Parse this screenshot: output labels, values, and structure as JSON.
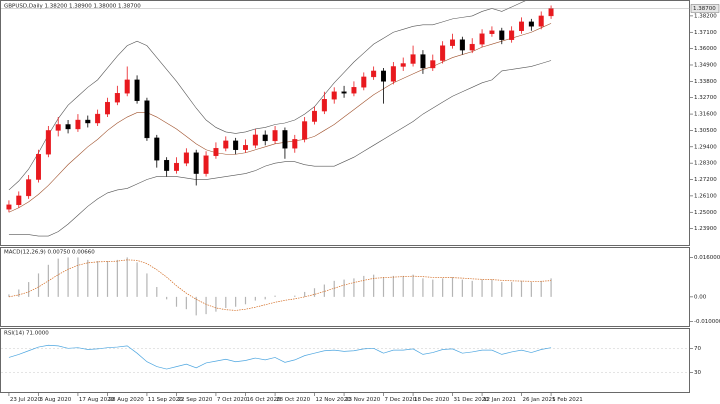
{
  "chart_data": [
    {
      "type": "candlestick",
      "title": "GBPUSD,Daily 1.38200 1.38900 1.38000 1.38700",
      "categories": [
        "23 Jul 2020",
        null,
        null,
        "3 Aug 2020",
        null,
        null,
        null,
        "17 Aug 2020",
        null,
        null,
        "28 Aug 2020",
        null,
        null,
        null,
        "11 Sep 2020",
        null,
        null,
        "22 Sep 2020",
        null,
        null,
        null,
        "7 Oct 2020",
        null,
        null,
        "16 Oct 2020",
        null,
        null,
        "28 Oct 2020",
        null,
        null,
        null,
        "12 Nov 2020",
        null,
        null,
        "23 Nov 2020",
        null,
        null,
        null,
        "7 Dec 2020",
        null,
        null,
        "18 Dec 2020",
        null,
        null,
        null,
        "31 Dec 2020",
        null,
        null,
        "12 Jan 2021",
        null,
        null,
        null,
        "26 Jan 2021",
        null,
        null,
        "5 Feb 2021"
      ],
      "open": [
        1.252,
        1.255,
        1.261,
        1.272,
        1.289,
        1.305,
        1.309,
        1.306,
        1.312,
        1.31,
        1.316,
        1.324,
        1.33,
        1.339,
        1.325,
        1.3,
        1.285,
        1.278,
        1.283,
        1.29,
        1.276,
        1.288,
        1.293,
        1.298,
        1.292,
        1.295,
        1.302,
        1.298,
        1.305,
        1.293,
        1.299,
        1.311,
        1.318,
        1.326,
        1.331,
        1.33,
        1.334,
        1.341,
        1.345,
        1.338,
        1.348,
        1.35,
        1.356,
        1.347,
        1.352,
        1.362,
        1.366,
        1.359,
        1.363,
        1.37,
        1.372,
        1.366,
        1.372,
        1.378,
        1.375,
        1.382
      ],
      "high": [
        1.258,
        1.264,
        1.275,
        1.292,
        1.308,
        1.314,
        1.312,
        1.316,
        1.315,
        1.319,
        1.327,
        1.335,
        1.348,
        1.342,
        1.327,
        1.302,
        1.287,
        1.287,
        1.293,
        1.292,
        1.291,
        1.297,
        1.301,
        1.3,
        1.299,
        1.306,
        1.305,
        1.308,
        1.307,
        1.302,
        1.314,
        1.321,
        1.331,
        1.334,
        1.335,
        1.338,
        1.344,
        1.348,
        1.347,
        1.351,
        1.354,
        1.362,
        1.359,
        1.356,
        1.365,
        1.37,
        1.368,
        1.367,
        1.373,
        1.375,
        1.374,
        1.375,
        1.381,
        1.38,
        1.385,
        1.389
      ],
      "low": [
        1.25,
        1.253,
        1.259,
        1.27,
        1.287,
        1.301,
        1.303,
        1.304,
        1.307,
        1.308,
        1.314,
        1.322,
        1.328,
        1.323,
        1.298,
        1.28,
        1.274,
        1.276,
        1.281,
        1.268,
        1.274,
        1.286,
        1.291,
        1.289,
        1.29,
        1.293,
        1.295,
        1.296,
        1.286,
        1.29,
        1.297,
        1.309,
        1.316,
        1.323,
        1.327,
        1.328,
        1.332,
        1.339,
        1.323,
        1.336,
        1.345,
        1.348,
        1.343,
        1.345,
        1.35,
        1.36,
        1.356,
        1.357,
        1.361,
        1.368,
        1.363,
        1.364,
        1.37,
        1.372,
        1.373,
        1.38
      ],
      "close": [
        1.255,
        1.261,
        1.272,
        1.289,
        1.305,
        1.309,
        1.306,
        1.312,
        1.31,
        1.316,
        1.324,
        1.33,
        1.339,
        1.325,
        1.3,
        1.285,
        1.278,
        1.283,
        1.29,
        1.276,
        1.288,
        1.293,
        1.298,
        1.292,
        1.295,
        1.302,
        1.298,
        1.305,
        1.293,
        1.299,
        1.311,
        1.318,
        1.326,
        1.331,
        1.33,
        1.334,
        1.341,
        1.345,
        1.338,
        1.348,
        1.35,
        1.356,
        1.347,
        1.352,
        1.362,
        1.366,
        1.359,
        1.363,
        1.37,
        1.372,
        1.366,
        1.372,
        1.378,
        1.375,
        1.382,
        1.387
      ],
      "color_up": "#e8191e",
      "color_down": "#000000",
      "bands": [
        {
          "color": "#555555",
          "values": [
            1.265,
            1.271,
            1.279,
            1.29,
            1.302,
            1.313,
            1.322,
            1.328,
            1.334,
            1.339,
            1.347,
            1.355,
            1.362,
            1.365,
            1.362,
            1.354,
            1.346,
            1.338,
            1.329,
            1.32,
            1.312,
            1.307,
            1.304,
            1.303,
            1.304,
            1.306,
            1.307,
            1.309,
            1.31,
            1.312,
            1.316,
            1.321,
            1.329,
            1.337,
            1.344,
            1.351,
            1.357,
            1.363,
            1.367,
            1.371,
            1.373,
            1.375,
            1.376,
            1.376,
            1.378,
            1.38,
            1.381,
            1.382,
            1.385,
            1.387,
            1.385,
            1.388,
            1.391,
            1.394,
            1.398,
            1.402
          ]
        },
        {
          "color": "#a0522d",
          "values": [
            1.25,
            1.253,
            1.257,
            1.262,
            1.268,
            1.275,
            1.282,
            1.288,
            1.294,
            1.299,
            1.305,
            1.31,
            1.314,
            1.317,
            1.317,
            1.314,
            1.31,
            1.306,
            1.301,
            1.296,
            1.292,
            1.29,
            1.289,
            1.289,
            1.29,
            1.292,
            1.294,
            1.296,
            1.297,
            1.298,
            1.299,
            1.301,
            1.305,
            1.309,
            1.314,
            1.319,
            1.324,
            1.329,
            1.333,
            1.337,
            1.34,
            1.343,
            1.346,
            1.348,
            1.351,
            1.354,
            1.356,
            1.358,
            1.361,
            1.363,
            1.365,
            1.367,
            1.369,
            1.371,
            1.374,
            1.377
          ]
        },
        {
          "color": "#555555",
          "values": [
            1.235,
            1.235,
            1.235,
            1.234,
            1.234,
            1.237,
            1.242,
            1.248,
            1.254,
            1.259,
            1.263,
            1.265,
            1.266,
            1.269,
            1.272,
            1.274,
            1.274,
            1.274,
            1.273,
            1.272,
            1.272,
            1.273,
            1.274,
            1.275,
            1.276,
            1.278,
            1.281,
            1.283,
            1.284,
            1.284,
            1.282,
            1.281,
            1.281,
            1.281,
            1.284,
            1.287,
            1.291,
            1.295,
            1.299,
            1.303,
            1.307,
            1.311,
            1.316,
            1.32,
            1.324,
            1.328,
            1.331,
            1.334,
            1.337,
            1.339,
            1.345,
            1.346,
            1.347,
            1.348,
            1.35,
            1.352
          ]
        }
      ],
      "ylim": [
        1.23,
        1.39
      ],
      "yticks": [
        {
          "value": 1.239,
          "label": "1.23900"
        },
        {
          "value": 1.25,
          "label": "1.25000"
        },
        {
          "value": 1.261,
          "label": "1.26100"
        },
        {
          "value": 1.272,
          "label": "1.27200"
        },
        {
          "value": 1.283,
          "label": "1.28300"
        },
        {
          "value": 1.294,
          "label": "1.29400"
        },
        {
          "value": 1.305,
          "label": "1.30500"
        },
        {
          "value": 1.316,
          "label": "1.31600"
        },
        {
          "value": 1.327,
          "label": "1.32700"
        },
        {
          "value": 1.338,
          "label": "1.33800"
        },
        {
          "value": 1.349,
          "label": "1.34900"
        },
        {
          "value": 1.36,
          "label": "1.36000"
        },
        {
          "value": 1.371,
          "label": "1.37100"
        },
        {
          "value": 1.382,
          "label": "1.38200"
        }
      ],
      "last_price": {
        "value": 1.387,
        "label": "1.38700"
      }
    },
    {
      "type": "macd",
      "title": "MACD(12,26,9) 0.00750 0.00660",
      "histogram": {
        "color": "#b4b4b4",
        "values": [
          0.001,
          0.003,
          0.006,
          0.0095,
          0.013,
          0.0155,
          0.016,
          0.016,
          0.015,
          0.0145,
          0.0145,
          0.015,
          0.016,
          0.014,
          0.0095,
          0.004,
          -0.001,
          -0.004,
          -0.005,
          -0.0075,
          -0.007,
          -0.006,
          -0.0045,
          -0.004,
          -0.003,
          -0.0015,
          -0.001,
          0.0005,
          0.0,
          0.0005,
          0.002,
          0.0035,
          0.005,
          0.0065,
          0.007,
          0.0075,
          0.0085,
          0.009,
          0.008,
          0.0085,
          0.0085,
          0.009,
          0.0075,
          0.007,
          0.0075,
          0.008,
          0.007,
          0.0065,
          0.007,
          0.007,
          0.006,
          0.006,
          0.0065,
          0.006,
          0.0065,
          0.0075
        ]
      },
      "signal": {
        "color": "#d2691e",
        "values": [
          0.0,
          0.0008,
          0.002,
          0.004,
          0.0065,
          0.009,
          0.0112,
          0.0128,
          0.0138,
          0.0142,
          0.0143,
          0.0145,
          0.015,
          0.0148,
          0.0135,
          0.011,
          0.008,
          0.0045,
          0.0015,
          -0.001,
          -0.003,
          -0.0045,
          -0.0052,
          -0.0055,
          -0.005,
          -0.0042,
          -0.0032,
          -0.0022,
          -0.0014,
          -0.0008,
          0.0,
          0.001,
          0.0022,
          0.0035,
          0.0048,
          0.0058,
          0.0067,
          0.0075,
          0.0078,
          0.008,
          0.0082,
          0.0084,
          0.0082,
          0.0079,
          0.0078,
          0.0078,
          0.0076,
          0.0073,
          0.0071,
          0.007,
          0.0067,
          0.0065,
          0.0064,
          0.0063,
          0.0063,
          0.0066
        ]
      },
      "ylim": [
        -0.011,
        0.019
      ],
      "yticks": [
        {
          "value": 0.016,
          "label": "0.016000"
        },
        {
          "value": 0,
          "label": "0.00"
        },
        {
          "value": -0.01,
          "label": "-0.010000"
        }
      ]
    },
    {
      "type": "line",
      "title": "RSI(14) 71.0000",
      "color": "#4da6e0",
      "values": [
        55,
        60,
        66,
        72,
        75,
        74,
        70,
        71,
        68,
        69,
        71,
        72,
        74,
        62,
        48,
        40,
        36,
        40,
        44,
        38,
        46,
        49,
        52,
        48,
        50,
        54,
        51,
        55,
        47,
        51,
        58,
        62,
        66,
        67,
        65,
        66,
        69,
        70,
        62,
        67,
        67,
        69,
        60,
        63,
        68,
        69,
        62,
        64,
        67,
        67,
        60,
        64,
        67,
        63,
        68,
        71
      ],
      "ylim": [
        0,
        100
      ],
      "yticks": [
        70,
        30
      ]
    }
  ]
}
